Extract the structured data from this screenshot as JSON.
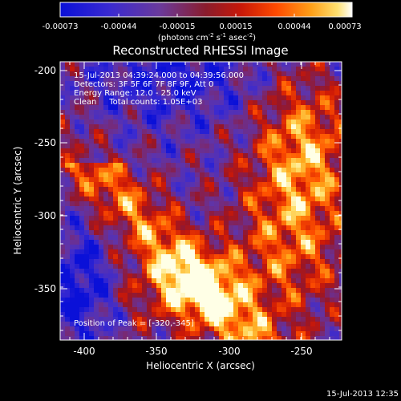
{
  "colorbar": {
    "ticks": [
      "-0.00073",
      "-0.00044",
      "-0.00015",
      "0.00015",
      "0.00044",
      "0.00073"
    ],
    "units_main": "(photons cm",
    "units_exp1": "-2",
    "units_mid": " s",
    "units_exp2": "-1",
    "units_tail": " asec",
    "units_exp3": "-2",
    "units_close": ")"
  },
  "plot": {
    "title": "Reconstructed RHESSI Image",
    "xlabel": "Heliocentric X (arcsec)",
    "ylabel": "Heliocentric Y (arcsec)",
    "xticks": [
      "-400",
      "-350",
      "-300",
      "-250"
    ],
    "yticks": [
      "-200",
      "-250",
      "-300",
      "-350"
    ],
    "annotations": [
      "15-Jul-2013 04:39:24.000 to 04:39:56.000",
      "Detectors: 3F 5F 6F 7F 8F 9F, Att 0",
      "Energy Range: 12.0 - 25.0 keV",
      "Clean     Total counts: 1.05E+03"
    ],
    "peak_label": "Position of Peak = [-320,-345]"
  },
  "footer": {
    "timestamp": "15-Jul-2013 12:35"
  },
  "chart_data": {
    "type": "heatmap",
    "title": "Reconstructed RHESSI Image",
    "xlabel": "Heliocentric X (arcsec)",
    "ylabel": "Heliocentric Y (arcsec)",
    "xlim": [
      -412,
      -228
    ],
    "ylim": [
      -388,
      -195
    ],
    "value_range": [
      -0.00073,
      0.00073
    ],
    "units": "(photons cm-2 s-1 asec-2)",
    "peak_position": [
      -320,
      -345
    ]
  }
}
